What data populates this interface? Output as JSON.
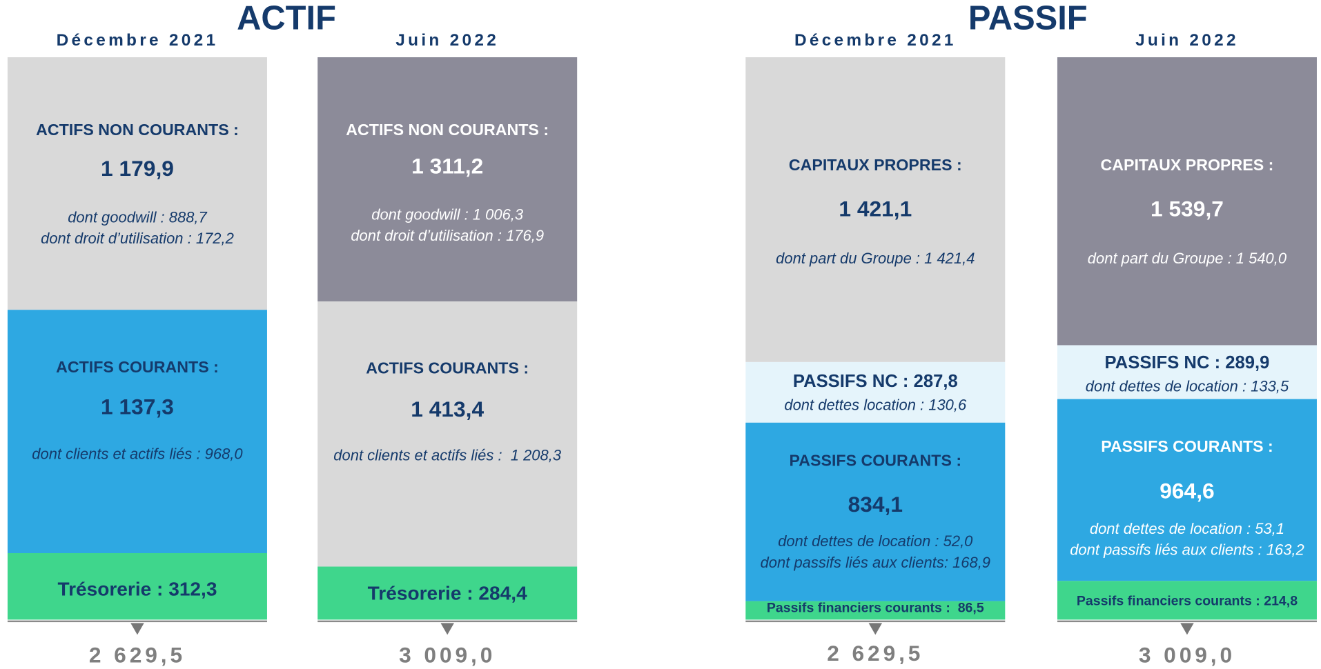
{
  "sections": [
    {
      "title": "ACTIF",
      "columns": [
        {
          "period": "Décembre 2021",
          "blocks": [
            {
              "label": "ACTIFS NON COURANTS :",
              "value": "1 179,9",
              "details": [
                "dont goodwill : 888,7",
                "dont droit d’utilisation : 172,2"
              ]
            },
            {
              "label": "ACTIFS COURANTS :",
              "value": "1 137,3",
              "details": [
                "dont clients et actifs liés : 968,0"
              ]
            },
            {
              "label": "Trésorerie : 312,3"
            }
          ],
          "total": "2 629,5"
        },
        {
          "period": "Juin 2022",
          "blocks": [
            {
              "label": "ACTIFS NON COURANTS :",
              "value": "1 311,2",
              "details": [
                "dont goodwill : 1 006,3",
                "dont droit d’utilisation : 176,9"
              ]
            },
            {
              "label": "ACTIFS COURANTS :",
              "value": "1 413,4",
              "details": [
                "dont clients et actifs liés :  1 208,3"
              ]
            },
            {
              "label": "Trésorerie : 284,4"
            }
          ],
          "total": "3 009,0"
        }
      ]
    },
    {
      "title": "PASSIF",
      "columns": [
        {
          "period": "Décembre 2021",
          "blocks": [
            {
              "label": "CAPITAUX PROPRES :",
              "value": "1 421,1",
              "details": [
                "dont part du Groupe : 1 421,4"
              ]
            },
            {
              "label": "PASSIFS NC : 287,8",
              "details": [
                "dont dettes location : 130,6"
              ]
            },
            {
              "label": "PASSIFS COURANTS :",
              "value": "834,1",
              "details": [
                "dont dettes de location : 52,0",
                "dont passifs liés aux clients: 168,9"
              ]
            },
            {
              "label": "Passifs financiers courants :  86,5"
            }
          ],
          "total": "2 629,5"
        },
        {
          "period": "Juin 2022",
          "blocks": [
            {
              "label": "CAPITAUX PROPRES :",
              "value": "1 539,7",
              "details": [
                "dont part du Groupe : 1 540,0"
              ]
            },
            {
              "label": "PASSIFS NC : 289,9",
              "details": [
                "dont dettes de location : 133,5"
              ]
            },
            {
              "label": "PASSIFS COURANTS :",
              "value": "964,6",
              "details": [
                "dont dettes de location : 53,1",
                "dont passifs liés aux clients : 163,2"
              ]
            },
            {
              "label": "Passifs financiers courants : 214,8"
            }
          ],
          "total": "3 009,0"
        }
      ]
    }
  ]
}
